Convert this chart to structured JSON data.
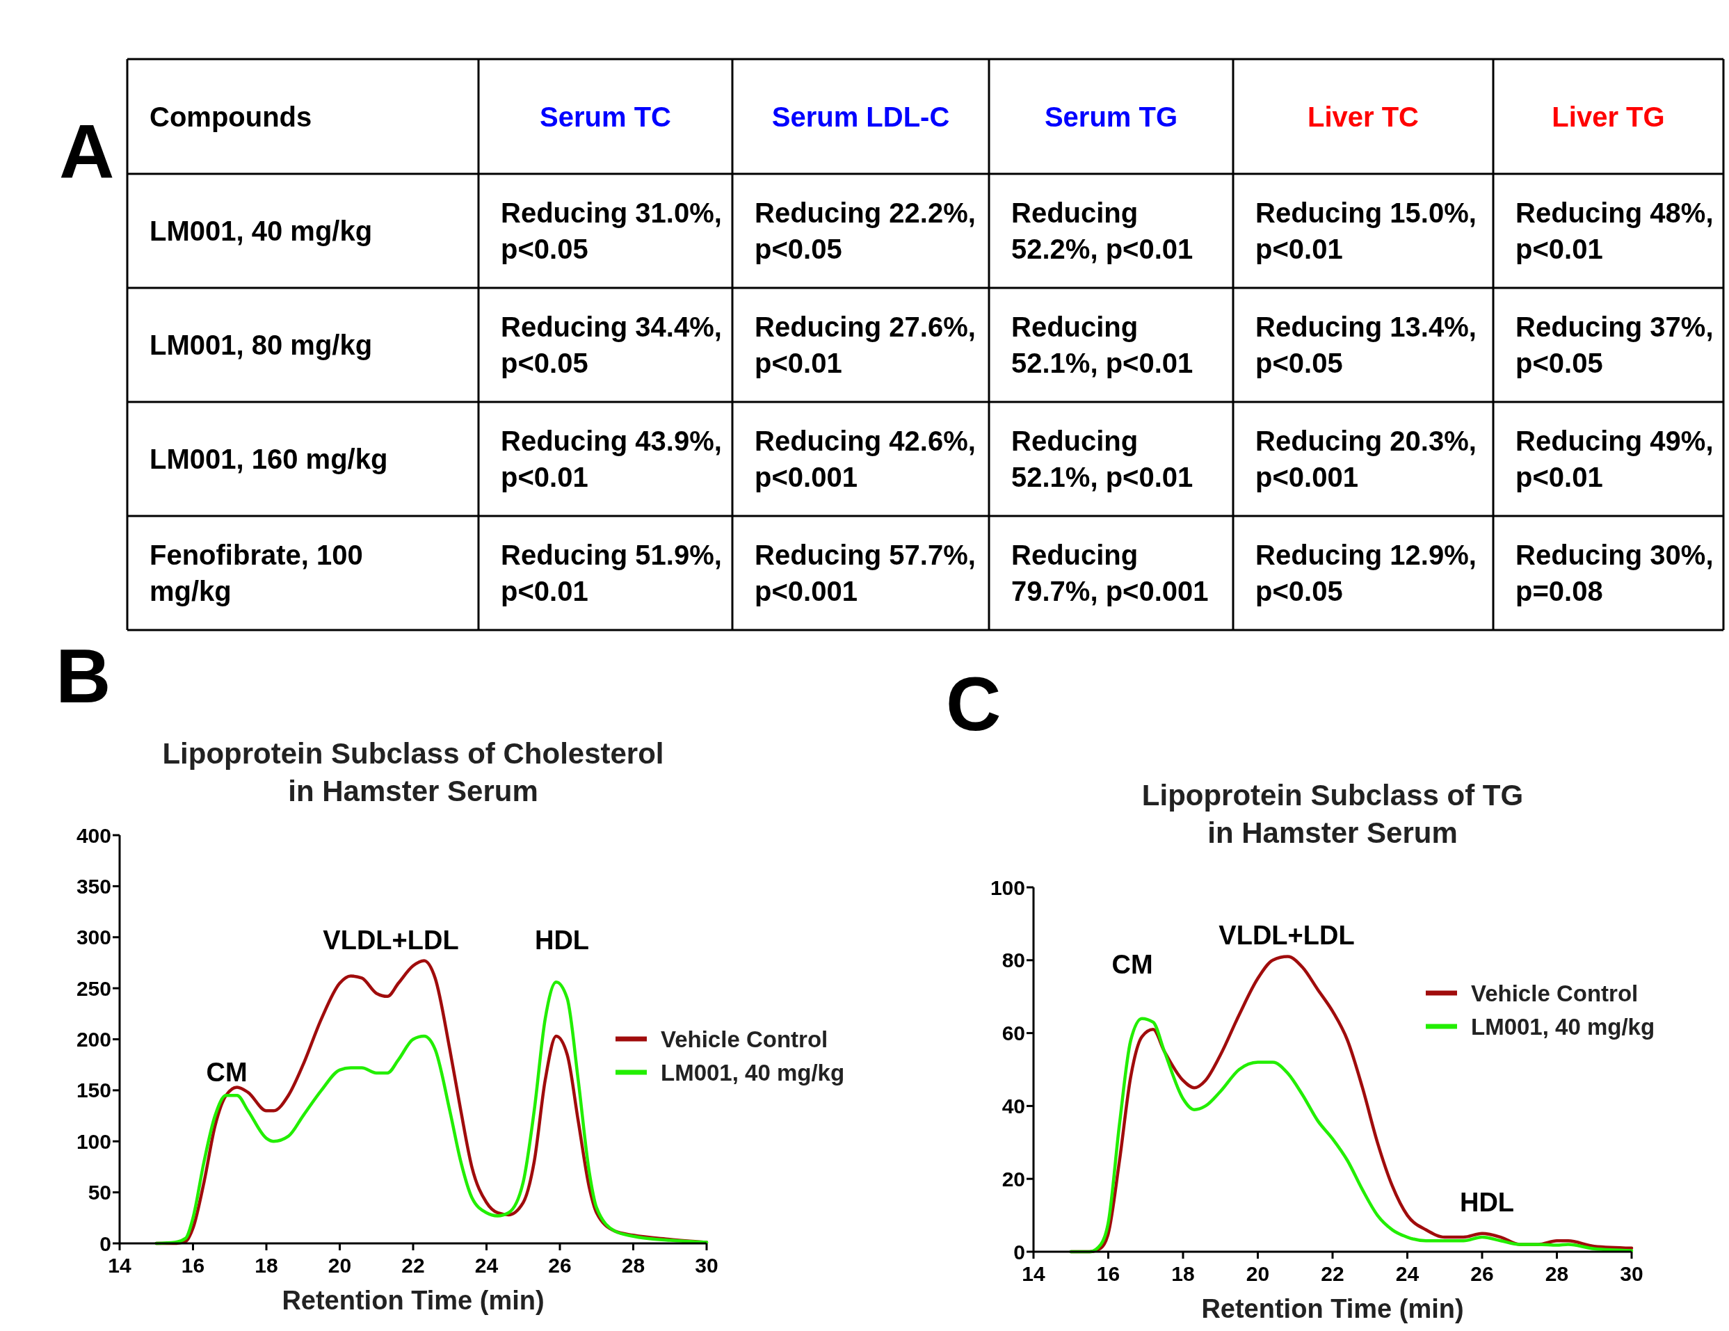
{
  "chart_data": [
    {
      "type": "other",
      "annotations": [
        "A"
      ],
      "categories": [
        "Compounds",
        "Serum TC",
        "Serum  LDL-C",
        "Serum TG",
        "Liver TC",
        "Liver TG"
      ],
      "colors": [
        "#000000",
        "#0000ff",
        "#0000ff",
        "#0000ff",
        "#ff0000",
        "#ff0000"
      ],
      "y_categories": [
        "LM001, 40 mg/kg",
        "LM001, 80 mg/kg",
        "LM001, 160 mg/kg",
        "Fenofibrate, 100 mg/kg"
      ],
      "cell_labels": [
        [
          "Reducing 31.0%, p<0.05",
          "Reducing 22.2%, p<0.05",
          "Reducing 52.2%, p<0.01",
          "Reducing 15.0%, p<0.01",
          "Reducing 48%, p<0.01"
        ],
        [
          "Reducing 34.4%, p<0.05",
          "Reducing 27.6%, p<0.01",
          "Reducing 52.1%, p<0.01",
          "Reducing 13.4%, p<0.05",
          "Reducing 37%, p<0.05"
        ],
        [
          "Reducing 43.9%, p<0.01",
          "Reducing 42.6%, p<0.001",
          "Reducing 52.1%, p<0.01",
          "Reducing 20.3%, p<0.001",
          "Reducing 49%, p<0.01"
        ],
        [
          "Reducing 51.9%, p<0.01",
          "Reducing 57.7%, p<0.001",
          "Reducing 79.7%, p<0.001",
          "Reducing 12.9%, p<0.05",
          "Reducing 30%, p=0.08"
        ]
      ]
    },
    {
      "type": "line",
      "title": "Lipoprotein Subclass of Cholesterol\nin Hamster Serum",
      "xlabel": "Retention Time (min)",
      "legend": "right",
      "marker": "none",
      "grid": false,
      "xlim": [
        14,
        30
      ],
      "xticks": [
        14,
        16,
        18,
        20,
        22,
        24,
        26,
        28,
        30
      ],
      "ylim": [
        0,
        400
      ],
      "yticks": [
        0,
        50,
        100,
        150,
        200,
        250,
        300,
        350,
        400
      ],
      "annotations": [
        "B",
        "CM",
        "VLDL+LDL",
        "HDL"
      ],
      "x": [
        15,
        15.5,
        15.8,
        16,
        16.3,
        16.6,
        16.9,
        17.2,
        17.5,
        18,
        18.2,
        18.6,
        19,
        19.5,
        20,
        20.3,
        20.6,
        21,
        21.3,
        21.6,
        22,
        22.3,
        22.6,
        23,
        23.3,
        23.6,
        24,
        24.3,
        24.6,
        25,
        25.3,
        25.6,
        25.9,
        26.2,
        26.5,
        26.8,
        27,
        27.5,
        28,
        29,
        30
      ],
      "series": [
        {
          "name": "Vehicle Control",
          "color": "#a00c0c",
          "values": [
            0,
            0,
            2,
            15,
            60,
            115,
            145,
            153,
            148,
            130,
            130,
            145,
            175,
            220,
            255,
            262,
            260,
            245,
            242,
            255,
            272,
            277,
            260,
            190,
            130,
            75,
            40,
            30,
            28,
            40,
            80,
            160,
            203,
            185,
            120,
            55,
            30,
            12,
            8,
            4,
            1
          ]
        },
        {
          "name": "LM001, 40 mg/kg",
          "color": "#22ee00",
          "values": [
            0,
            1,
            5,
            25,
            80,
            125,
            145,
            145,
            130,
            103,
            100,
            105,
            125,
            150,
            170,
            172,
            172,
            167,
            167,
            180,
            200,
            203,
            190,
            130,
            80,
            45,
            30,
            27,
            30,
            60,
            130,
            220,
            256,
            240,
            160,
            70,
            35,
            12,
            7,
            3,
            1
          ]
        }
      ]
    },
    {
      "type": "line",
      "title": "Lipoprotein Subclass of TG\nin Hamster Serum",
      "xlabel": "Retention Time (min)",
      "legend": "right",
      "marker": "none",
      "grid": false,
      "xlim": [
        14,
        30
      ],
      "xticks": [
        14,
        16,
        18,
        20,
        22,
        24,
        26,
        28,
        30
      ],
      "ylim": [
        0,
        100
      ],
      "yticks": [
        0,
        20,
        40,
        60,
        80,
        100
      ],
      "annotations": [
        "C",
        "CM",
        "VLDL+LDL",
        "HDL"
      ],
      "x": [
        15,
        15.5,
        15.8,
        16,
        16.3,
        16.6,
        16.9,
        17.2,
        17.5,
        18,
        18.3,
        18.6,
        19,
        19.5,
        20,
        20.4,
        20.8,
        21.2,
        21.6,
        22,
        22.4,
        22.8,
        23.2,
        23.6,
        24,
        24.5,
        25,
        25.5,
        26,
        26.5,
        27,
        27.5,
        28,
        28.3,
        29,
        30
      ],
      "series": [
        {
          "name": "Vehicle Control",
          "color": "#a00c0c",
          "values": [
            0,
            0,
            1,
            5,
            25,
            48,
            59,
            61,
            55,
            47,
            45,
            47,
            54,
            65,
            75,
            80,
            81,
            78,
            72,
            66,
            58,
            45,
            30,
            18,
            10,
            6,
            4,
            4,
            5,
            4,
            2,
            2,
            3,
            3,
            1.5,
            1
          ]
        },
        {
          "name": "LM001, 40 mg/kg",
          "color": "#22ee00",
          "values": [
            0,
            0,
            2,
            8,
            35,
            58,
            64,
            63,
            55,
            42,
            39,
            40,
            44,
            50,
            52,
            52,
            49,
            43,
            36,
            31,
            25,
            17,
            10,
            6,
            4,
            3,
            3,
            3,
            4,
            3,
            2,
            2,
            1.8,
            2,
            0.8,
            0.3
          ]
        }
      ]
    }
  ]
}
